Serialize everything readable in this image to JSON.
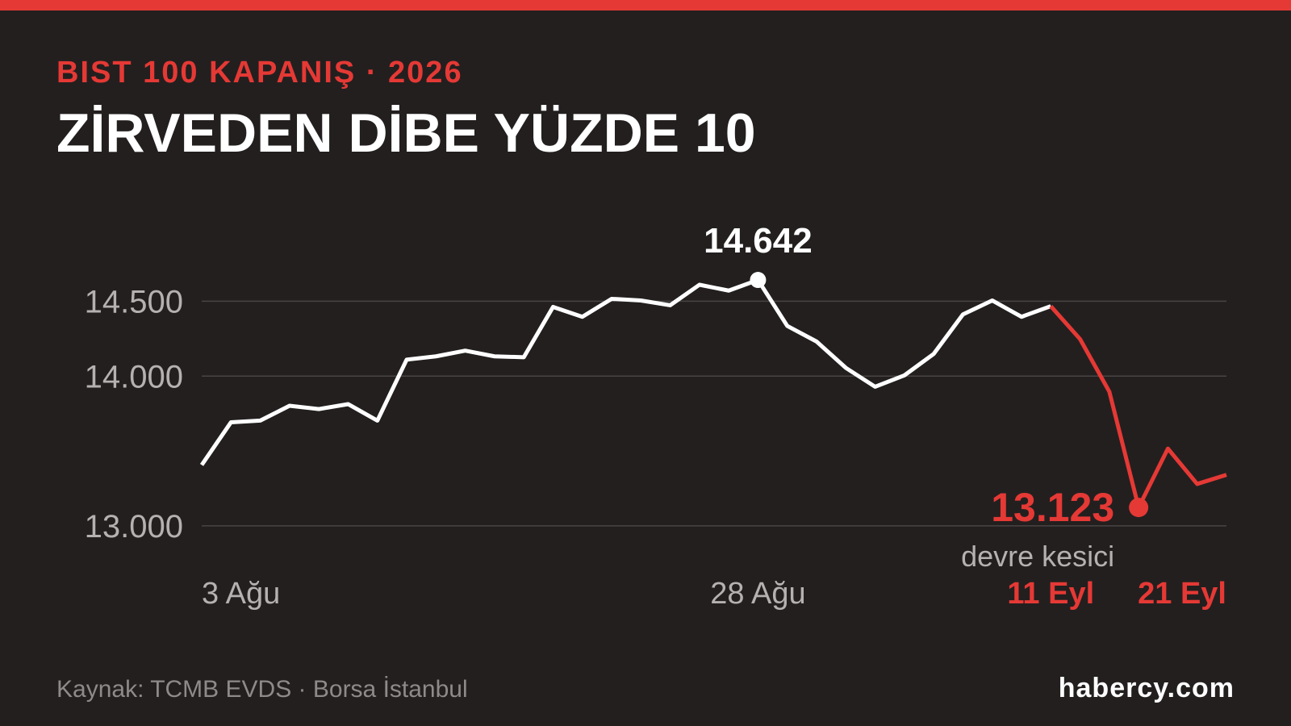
{
  "chart_data": {
    "type": "line",
    "kicker": "BIST 100 KAPANIŞ · 2026",
    "title": "ZİRVEDEN DİBE YÜZDE 10",
    "source": "Kaynak: TCMB EVDS · Borsa İstanbul",
    "brand": "habercy.com",
    "categories": [
      "3 Ağu",
      null,
      null,
      null,
      null,
      null,
      null,
      null,
      null,
      null,
      null,
      null,
      null,
      null,
      null,
      null,
      null,
      null,
      null,
      "28 Ağu",
      null,
      null,
      null,
      null,
      null,
      null,
      null,
      null,
      null,
      "11 Eyl",
      null,
      null,
      null,
      null,
      null,
      "21 Eyl"
    ],
    "series": [
      {
        "color": "#ffffff",
        "values": [
          13407,
          13692,
          13703,
          13802,
          13780,
          13813,
          13703,
          14110,
          14132,
          14170,
          14132,
          14126,
          14462,
          14396,
          14516,
          14505,
          14473,
          14610,
          14571,
          14642,
          14335,
          14231,
          14055,
          13929,
          14005,
          14148,
          14412,
          14505,
          14396,
          14467,
          14247,
          13896,
          13123,
          13516,
          13280,
          13341
        ],
        "value_labels": [
          null,
          null,
          null,
          null,
          null,
          null,
          null,
          null,
          null,
          null,
          null,
          null,
          null,
          null,
          null,
          null,
          null,
          null,
          null,
          "14.642",
          null,
          null,
          null,
          null,
          null,
          null,
          null,
          null,
          null,
          null,
          null,
          null,
          "13.123",
          null,
          null,
          null
        ]
      }
    ],
    "highlight": {
      "start": 29,
      "color": "#e53935"
    },
    "annotations": [
      {
        "text": "devre kesici",
        "index": 32
      }
    ],
    "ylim": [
      12900,
      14750
    ],
    "yticks": [
      {
        "value": 13000,
        "label": "13.000"
      },
      {
        "value": 14000,
        "label": "14.000"
      },
      {
        "value": 14500,
        "label": "14.500"
      }
    ],
    "grid": true
  }
}
